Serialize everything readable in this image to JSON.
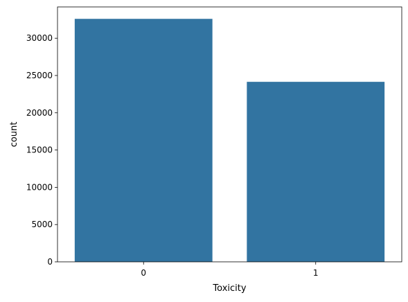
{
  "chart_data": {
    "type": "bar",
    "categories": [
      "0",
      "1"
    ],
    "values": [
      32600,
      24150
    ],
    "title": "",
    "xlabel": "Toxicity",
    "ylabel": "count",
    "ylim": [
      0,
      34200
    ],
    "yticks": [
      0,
      5000,
      10000,
      15000,
      20000,
      25000,
      30000
    ],
    "ytick_labels": [
      "0",
      "5000",
      "10000",
      "15000",
      "20000",
      "25000",
      "30000"
    ],
    "grid": false,
    "legend": "none",
    "bar_color": "#3274a1"
  }
}
